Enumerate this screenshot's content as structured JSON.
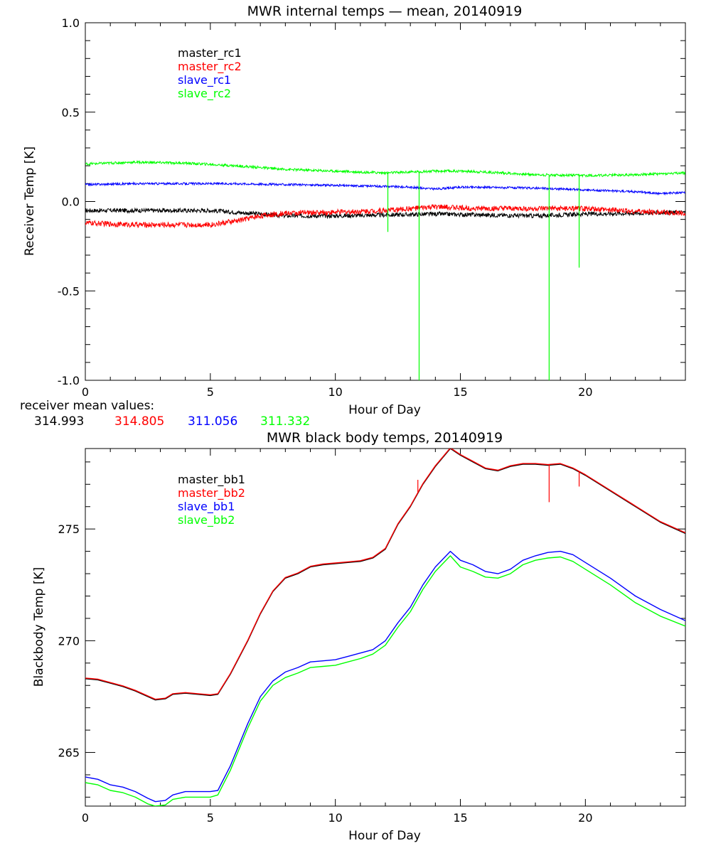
{
  "colors": {
    "black": "#000000",
    "red": "#ff0000",
    "blue": "#0000ff",
    "green": "#00ff00"
  },
  "receiver_mean": {
    "label": "receiver mean values:",
    "values": [
      {
        "text": "314.993",
        "color": "#000000"
      },
      {
        "text": "314.805",
        "color": "#ff0000"
      },
      {
        "text": "311.056",
        "color": "#0000ff"
      },
      {
        "text": "311.332",
        "color": "#00ff00"
      }
    ]
  },
  "chart_data": [
    {
      "type": "line",
      "title": "MWR internal temps — mean, 20140919",
      "xlabel": "Hour of Day",
      "ylabel": "Receiver Temp [K]",
      "xlim": [
        0,
        24
      ],
      "ylim": [
        -1.0,
        1.0
      ],
      "x_ticks": [
        0,
        5,
        10,
        15,
        20
      ],
      "x_tick_labels": [
        "0",
        "5",
        "10",
        "15",
        "20"
      ],
      "y_ticks": [
        -1.0,
        -0.5,
        0.0,
        0.5,
        1.0
      ],
      "y_tick_labels": [
        "-1.0",
        "-0.5",
        "0.0",
        "0.5",
        "1.0"
      ],
      "legend_position": "top-left",
      "series": [
        {
          "name": "master_rc1",
          "color": "#000000",
          "noise": 0.012,
          "x": [
            0,
            2,
            4,
            5,
            6,
            7,
            8,
            10,
            12,
            14,
            16,
            18,
            20,
            22,
            24
          ],
          "y": [
            -0.05,
            -0.05,
            -0.05,
            -0.05,
            -0.06,
            -0.07,
            -0.08,
            -0.08,
            -0.075,
            -0.07,
            -0.075,
            -0.08,
            -0.07,
            -0.065,
            -0.06
          ]
        },
        {
          "name": "master_rc2",
          "color": "#ff0000",
          "noise": 0.015,
          "x": [
            0,
            2,
            4,
            5,
            6,
            7,
            8,
            10,
            12,
            13,
            14,
            16,
            18,
            20,
            22,
            24
          ],
          "y": [
            -0.12,
            -0.13,
            -0.13,
            -0.13,
            -0.11,
            -0.08,
            -0.065,
            -0.06,
            -0.05,
            -0.04,
            -0.03,
            -0.04,
            -0.04,
            -0.04,
            -0.055,
            -0.065
          ]
        },
        {
          "name": "slave_rc1",
          "color": "#0000ff",
          "noise": 0.006,
          "x": [
            0,
            2,
            4,
            6,
            8,
            10,
            12,
            13,
            14,
            15,
            16,
            18,
            19,
            20,
            22,
            23,
            24
          ],
          "y": [
            0.095,
            0.1,
            0.1,
            0.1,
            0.095,
            0.09,
            0.085,
            0.08,
            0.07,
            0.08,
            0.08,
            0.075,
            0.07,
            0.065,
            0.055,
            0.045,
            0.05
          ]
        },
        {
          "name": "slave_rc2",
          "color": "#00ff00",
          "noise": 0.007,
          "x": [
            0,
            2,
            4,
            6,
            8,
            10,
            12,
            14,
            15,
            16,
            18,
            20,
            22,
            24
          ],
          "y": [
            0.21,
            0.22,
            0.215,
            0.2,
            0.18,
            0.17,
            0.16,
            0.17,
            0.17,
            0.165,
            0.15,
            0.145,
            0.15,
            0.16
          ],
          "spikes": [
            {
              "x": 12.1,
              "y": -0.17
            },
            {
              "x": 13.35,
              "y": -1.0
            },
            {
              "x": 18.55,
              "y": -1.0
            },
            {
              "x": 19.75,
              "y": -0.37
            }
          ]
        }
      ]
    },
    {
      "type": "line",
      "title": "MWR black body temps, 20140919",
      "xlabel": "Hour of Day",
      "ylabel": "Blackbody Temp [K]",
      "xlim": [
        0,
        24
      ],
      "ylim": [
        262.6,
        278.6
      ],
      "x_ticks": [
        0,
        5,
        10,
        15,
        20
      ],
      "x_tick_labels": [
        "0",
        "5",
        "10",
        "15",
        "20"
      ],
      "y_ticks": [
        265,
        270,
        275
      ],
      "y_tick_labels": [
        "265",
        "270",
        "275"
      ],
      "legend_position": "top-left",
      "series": [
        {
          "name": "master_bb1",
          "color": "#000000",
          "x": [
            0,
            0.5,
            1,
            1.5,
            2,
            2.5,
            2.8,
            3.2,
            3.5,
            4,
            4.5,
            5,
            5.3,
            5.8,
            6.5,
            7,
            7.5,
            8,
            8.5,
            9,
            9.5,
            10,
            10.5,
            11,
            11.5,
            12,
            12.5,
            13,
            13.5,
            14,
            14.6,
            15,
            15.5,
            16,
            16.5,
            17,
            17.5,
            18,
            18.5,
            19,
            19.5,
            20,
            21,
            22,
            23,
            24
          ],
          "y": [
            268.3,
            268.25,
            268.1,
            267.95,
            267.75,
            267.5,
            267.35,
            267.4,
            267.6,
            267.65,
            267.6,
            267.55,
            267.6,
            268.5,
            270.0,
            271.2,
            272.2,
            272.8,
            273.0,
            273.3,
            273.4,
            273.45,
            273.5,
            273.55,
            273.7,
            274.1,
            275.2,
            276.0,
            277.0,
            277.8,
            278.6,
            278.3,
            278.0,
            277.7,
            277.6,
            277.8,
            277.9,
            277.9,
            277.85,
            277.9,
            277.7,
            277.4,
            276.7,
            276.0,
            275.3,
            274.8
          ]
        },
        {
          "name": "master_bb2",
          "color": "#ff0000",
          "x": [
            0,
            0.5,
            1,
            1.5,
            2,
            2.5,
            2.8,
            3.2,
            3.5,
            4,
            4.5,
            5,
            5.3,
            5.8,
            6.5,
            7,
            7.5,
            8,
            8.5,
            9,
            9.5,
            10,
            10.5,
            11,
            11.5,
            12,
            12.5,
            13,
            13.5,
            14,
            14.6,
            15,
            15.5,
            16,
            16.5,
            17,
            17.5,
            18,
            18.5,
            19,
            19.5,
            20,
            21,
            22,
            23,
            24
          ],
          "y": [
            268.33,
            268.28,
            268.13,
            267.98,
            267.78,
            267.53,
            267.38,
            267.43,
            267.63,
            267.68,
            267.63,
            267.58,
            267.63,
            268.53,
            270.03,
            271.23,
            272.23,
            272.83,
            273.03,
            273.33,
            273.43,
            273.48,
            273.53,
            273.58,
            273.73,
            274.13,
            275.23,
            276.03,
            277.03,
            277.83,
            278.63,
            278.33,
            278.03,
            277.73,
            277.63,
            277.83,
            277.93,
            277.93,
            277.88,
            277.93,
            277.73,
            277.43,
            276.73,
            276.03,
            275.33,
            274.83
          ],
          "spikes": [
            {
              "x": 13.3,
              "y": 277.2
            },
            {
              "x": 18.55,
              "y": 276.2
            },
            {
              "x": 19.75,
              "y": 276.9
            }
          ]
        },
        {
          "name": "slave_bb1",
          "color": "#0000ff",
          "x": [
            0,
            0.5,
            1,
            1.5,
            2,
            2.5,
            2.8,
            3.2,
            3.5,
            4,
            4.5,
            5,
            5.3,
            5.8,
            6.5,
            7,
            7.5,
            8,
            8.5,
            9,
            9.5,
            10,
            10.5,
            11,
            11.5,
            12,
            12.5,
            13,
            13.5,
            14,
            14.6,
            15,
            15.5,
            16,
            16.5,
            17,
            17.5,
            18,
            18.5,
            19,
            19.5,
            20,
            21,
            22,
            23,
            24
          ],
          "y": [
            263.9,
            263.8,
            263.55,
            263.45,
            263.25,
            262.95,
            262.8,
            262.85,
            263.1,
            263.25,
            263.25,
            263.25,
            263.3,
            264.4,
            266.3,
            267.5,
            268.2,
            268.6,
            268.8,
            269.05,
            269.1,
            269.15,
            269.3,
            269.45,
            269.6,
            270.0,
            270.8,
            271.5,
            272.5,
            273.3,
            274.0,
            273.6,
            273.4,
            273.1,
            273.0,
            273.2,
            273.6,
            273.8,
            273.95,
            274.0,
            273.85,
            273.5,
            272.8,
            272.0,
            271.4,
            270.9
          ]
        },
        {
          "name": "slave_bb2",
          "color": "#00ff00",
          "x": [
            0,
            0.5,
            1,
            1.5,
            2,
            2.5,
            2.8,
            3.2,
            3.5,
            4,
            4.5,
            5,
            5.3,
            5.8,
            6.5,
            7,
            7.5,
            8,
            8.5,
            9,
            9.5,
            10,
            10.5,
            11,
            11.5,
            12,
            12.5,
            13,
            13.5,
            14,
            14.6,
            15,
            15.5,
            16,
            16.5,
            17,
            17.5,
            18,
            18.5,
            19,
            19.5,
            20,
            21,
            22,
            23,
            24
          ],
          "y": [
            263.65,
            263.55,
            263.3,
            263.2,
            263.0,
            262.7,
            262.6,
            262.65,
            262.9,
            263.0,
            263.0,
            263.0,
            263.1,
            264.2,
            266.1,
            267.3,
            268.0,
            268.35,
            268.55,
            268.8,
            268.85,
            268.9,
            269.05,
            269.2,
            269.4,
            269.8,
            270.6,
            271.3,
            272.3,
            273.1,
            273.8,
            273.3,
            273.1,
            272.85,
            272.8,
            273.0,
            273.4,
            273.6,
            273.7,
            273.75,
            273.55,
            273.2,
            272.5,
            271.7,
            271.1,
            270.65
          ]
        }
      ]
    }
  ]
}
